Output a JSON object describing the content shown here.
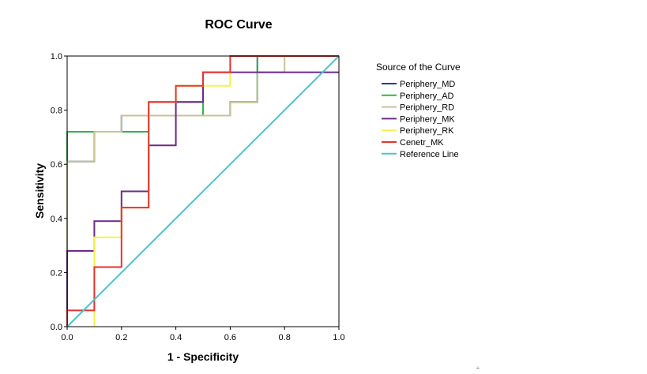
{
  "chart_data": {
    "type": "line",
    "title": "ROC Curve",
    "xlabel": "1 - Specificity",
    "ylabel": "Sensitivity",
    "xlim": [
      0,
      1
    ],
    "ylim": [
      0,
      1
    ],
    "xticks": [
      "0.0",
      "0.2",
      "0.4",
      "0.6",
      "0.8",
      "1.0"
    ],
    "yticks": [
      "0.0",
      "0.2",
      "0.4",
      "0.6",
      "0.8",
      "1.0"
    ],
    "grid": false,
    "legend_title": "Source of the Curve",
    "legend_position": "right",
    "series": [
      {
        "name": "Periphery_MD",
        "color": "#1f3f8f",
        "x": [
          0,
          0,
          0.1,
          0.1,
          0.2,
          0.2,
          0.6,
          0.6,
          0.7,
          0.7,
          1.0
        ],
        "y": [
          0,
          0.61,
          0.61,
          0.72,
          0.72,
          0.78,
          0.78,
          0.83,
          0.83,
          1.0,
          1.0
        ]
      },
      {
        "name": "Periphery_AD",
        "color": "#33b34a",
        "x": [
          0,
          0,
          0.3,
          0.3,
          0.5,
          0.5,
          0.6,
          0.6,
          0.7,
          0.7,
          1.0
        ],
        "y": [
          0,
          0.72,
          0.72,
          0.83,
          0.83,
          0.78,
          0.78,
          0.83,
          0.83,
          1.0,
          1.0
        ]
      },
      {
        "name": "Periphery_RD",
        "color": "#c9c393",
        "x": [
          0,
          0,
          0.1,
          0.1,
          0.2,
          0.2,
          0.6,
          0.6,
          0.7,
          0.7,
          0.8,
          0.8,
          1.0
        ],
        "y": [
          0,
          0.61,
          0.61,
          0.72,
          0.72,
          0.78,
          0.78,
          0.83,
          0.83,
          0.94,
          0.94,
          1.0,
          1.0
        ]
      },
      {
        "name": "Periphery_MK",
        "color": "#6a2b8a",
        "x": [
          0,
          0,
          0.1,
          0.1,
          0.2,
          0.2,
          0.3,
          0.3,
          0.4,
          0.4,
          0.5,
          0.5,
          1.0
        ],
        "y": [
          0,
          0.28,
          0.28,
          0.39,
          0.39,
          0.5,
          0.5,
          0.67,
          0.67,
          0.83,
          0.83,
          0.94,
          0.94
        ]
      },
      {
        "name": "Periphery_RK",
        "color": "#f2f24a",
        "x": [
          0.1,
          0.1,
          0.2,
          0.2,
          0.3,
          0.3,
          0.4,
          0.4,
          0.5,
          0.5,
          0.6,
          0.6,
          1.0
        ],
        "y": [
          0,
          0.33,
          0.33,
          0.44,
          0.44,
          0.83,
          0.83,
          0.89,
          0.89,
          0.89,
          0.89,
          1.0,
          1.0
        ]
      },
      {
        "name": "Cenetr_MK",
        "color": "#e8322e",
        "x": [
          0,
          0,
          0.1,
          0.1,
          0.2,
          0.2,
          0.3,
          0.3,
          0.4,
          0.4,
          0.5,
          0.5,
          0.6,
          0.6,
          1.0
        ],
        "y": [
          0,
          0.06,
          0.06,
          0.22,
          0.22,
          0.44,
          0.44,
          0.83,
          0.83,
          0.89,
          0.89,
          0.94,
          0.94,
          1.0,
          1.0
        ]
      },
      {
        "name": "Reference Line",
        "color": "#4bc3c8",
        "x": [
          0,
          1
        ],
        "y": [
          0,
          1
        ]
      }
    ],
    "annotation": "÷"
  }
}
